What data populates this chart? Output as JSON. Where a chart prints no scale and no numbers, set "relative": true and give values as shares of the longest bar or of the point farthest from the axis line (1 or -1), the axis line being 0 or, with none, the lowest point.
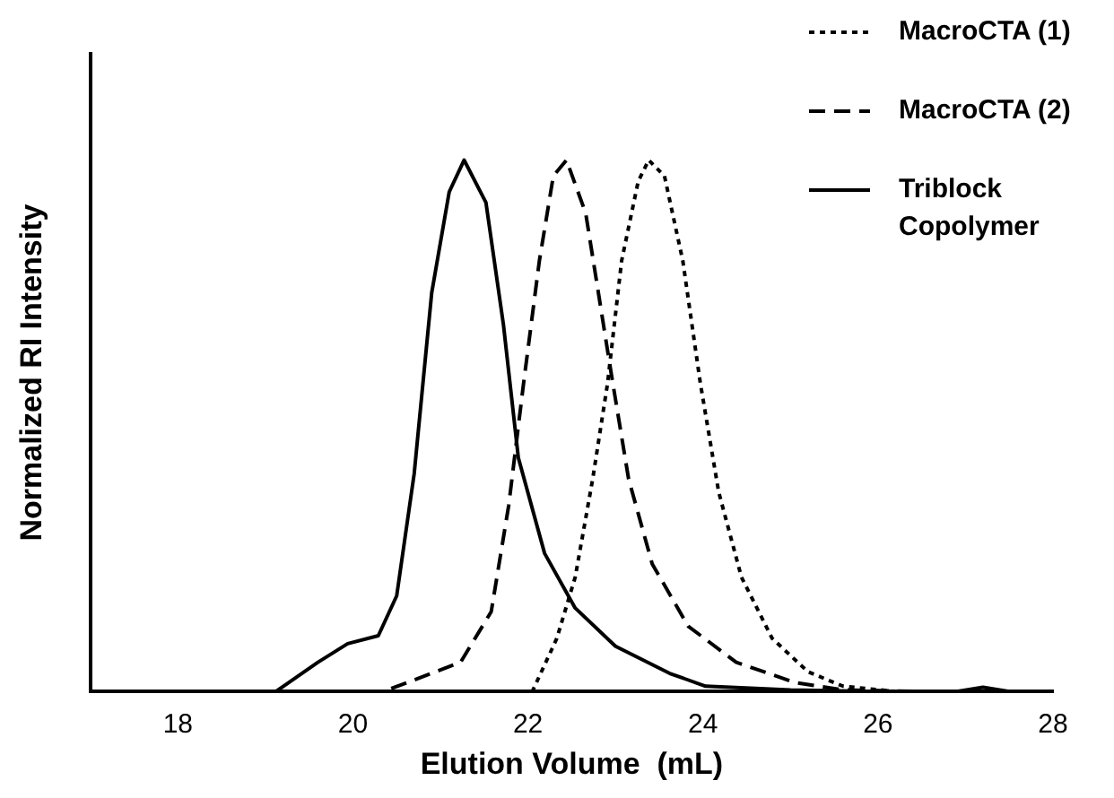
{
  "chart_data": {
    "type": "line",
    "xlabel": "Elution Volume  (mL)",
    "ylabel": "Normalized RI Intensity",
    "relative": true,
    "xlim": [
      17,
      28
    ],
    "xticks": [
      18,
      20,
      22,
      24,
      26,
      28
    ],
    "legend": "top right",
    "series": [
      {
        "name": "MacroCTA (1)",
        "color": "#000000",
        "line_style": "dotted",
        "x": [
          17,
          22.05,
          22.33,
          22.54,
          22.74,
          22.91,
          23.07,
          23.26,
          23.38,
          23.56,
          23.77,
          23.97,
          24.18,
          24.44,
          24.79,
          25.2,
          25.6,
          26.2,
          28
        ],
        "values": [
          0,
          0,
          0.1,
          0.215,
          0.4,
          0.58,
          0.81,
          0.96,
          1,
          0.97,
          0.81,
          0.58,
          0.375,
          0.215,
          0.1,
          0.037,
          0.01,
          0,
          0
        ]
      },
      {
        "name": "MacroCTA (2)",
        "color": "#000000",
        "line_style": "dashed",
        "x": [
          17,
          20.35,
          21.23,
          21.58,
          21.78,
          21.95,
          22.13,
          22.29,
          22.44,
          22.66,
          22.95,
          23.15,
          23.42,
          23.83,
          24.38,
          25.05,
          25.6,
          26.5,
          28
        ],
        "values": [
          0,
          0,
          0.055,
          0.15,
          0.35,
          0.58,
          0.81,
          0.97,
          1,
          0.9,
          0.6,
          0.4,
          0.24,
          0.123,
          0.055,
          0.017,
          0.003,
          0,
          0
        ]
      },
      {
        "name": "Triblock Copolymer",
        "color": "#000000",
        "line_style": "solid",
        "x": [
          17,
          18.5,
          19.12,
          19.6,
          19.94,
          20.29,
          20.5,
          20.7,
          20.9,
          21.1,
          21.27,
          21.52,
          21.72,
          21.89,
          22.19,
          22.54,
          23.0,
          23.62,
          24.03,
          25,
          26,
          26.9,
          27.2,
          27.5,
          28
        ],
        "values": [
          0,
          0,
          0,
          0.055,
          0.09,
          0.105,
          0.18,
          0.41,
          0.75,
          0.94,
          1,
          0.92,
          0.69,
          0.44,
          0.26,
          0.157,
          0.085,
          0.034,
          0.01,
          0.003,
          0,
          0,
          0.008,
          0,
          0
        ]
      }
    ]
  }
}
